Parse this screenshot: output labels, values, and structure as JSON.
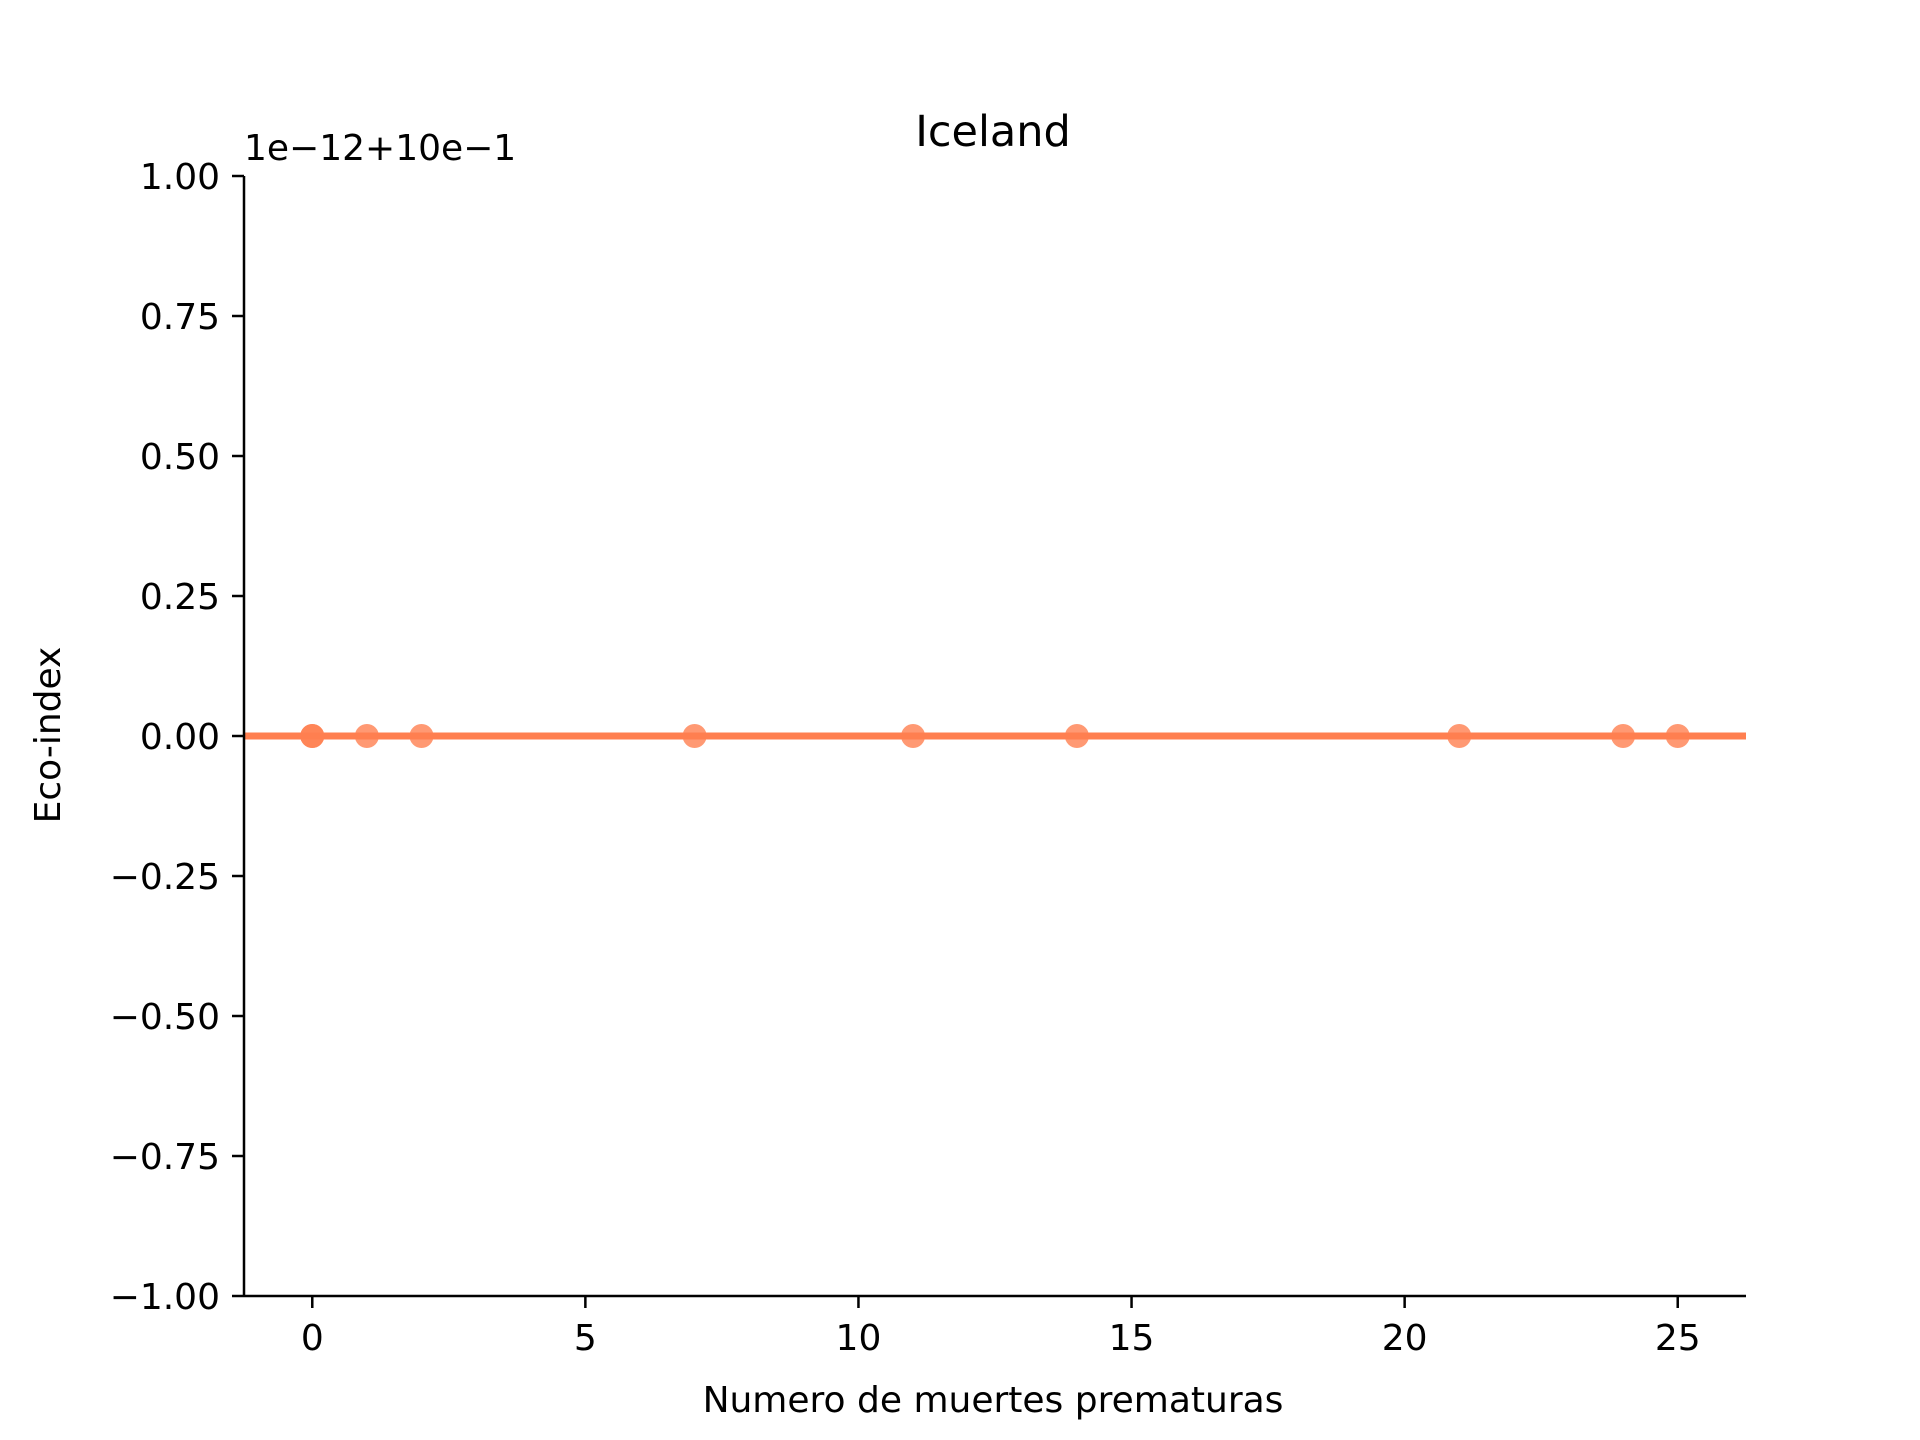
{
  "chart_data": {
    "type": "scatter",
    "title": "Iceland",
    "xlabel": "Numero de muertes prematuras",
    "ylabel": "Eco-index",
    "y_offset_label": "1e−12+10e−1",
    "xlim": [
      -1.25,
      26.25
    ],
    "ylim": [
      -1.0,
      1.0
    ],
    "x_ticks": [
      0,
      5,
      10,
      15,
      20,
      25
    ],
    "x_tick_labels": [
      "0",
      "5",
      "10",
      "15",
      "20",
      "25"
    ],
    "y_ticks": [
      1.0,
      0.75,
      0.5,
      0.25,
      0.0,
      -0.25,
      -0.5,
      -0.75,
      -1.0
    ],
    "y_tick_labels": [
      "1.00",
      "0.75",
      "0.50",
      "0.25",
      "0.00",
      "−0.25",
      "−0.50",
      "−0.75",
      "−1.00"
    ],
    "grid": false,
    "color": "#ff7f50",
    "series": [
      {
        "x": [
          0,
          0,
          1,
          2,
          7,
          11,
          14,
          21,
          24,
          25
        ],
        "y": [
          0,
          0,
          0,
          0,
          0,
          0,
          0,
          0,
          0,
          0
        ]
      }
    ],
    "regression_line": {
      "x": [
        -1.25,
        26.25
      ],
      "y": [
        0,
        0
      ]
    }
  }
}
